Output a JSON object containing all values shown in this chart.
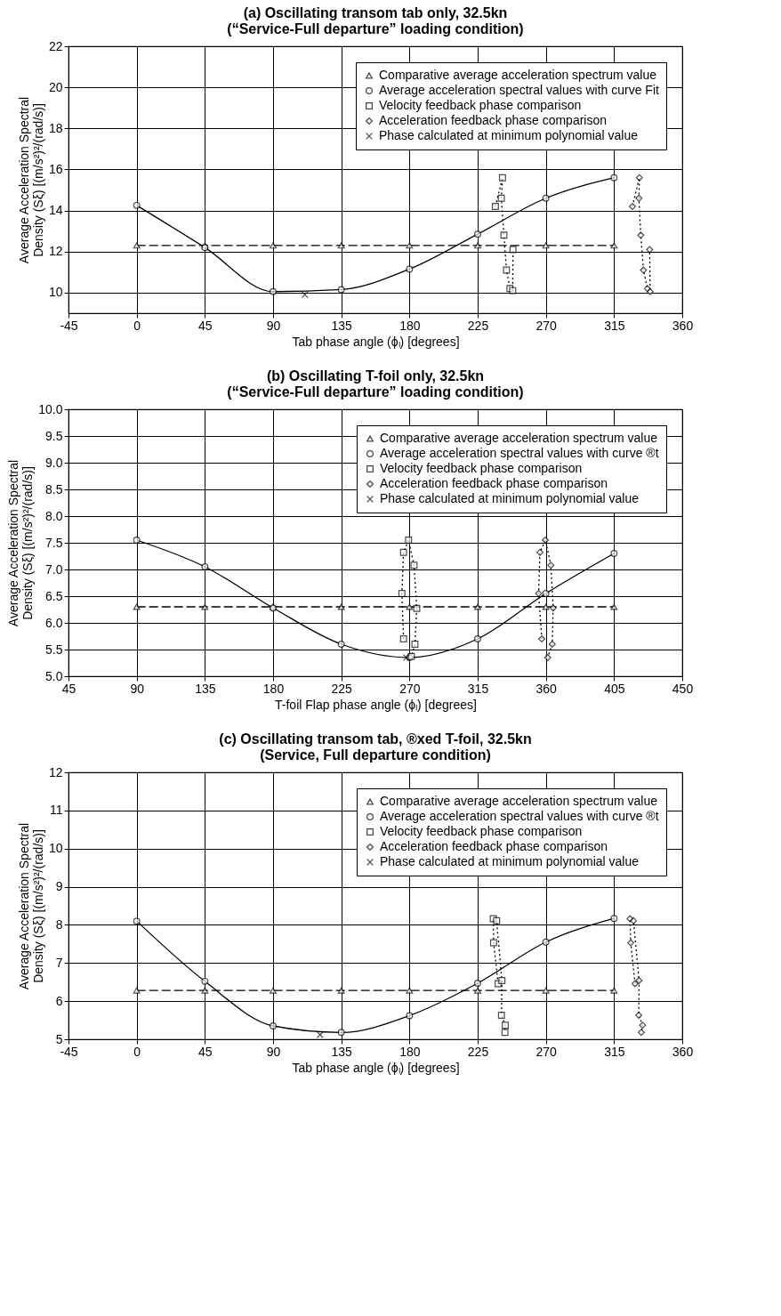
{
  "chart_data": [
    {
      "type": "line",
      "title": "(a) Oscillating transom tab only, 32.5kn\n(“Service-Full departure” loading condition)",
      "xlabel": "Tab phase angle (ϕₗ) [degrees]",
      "ylabel": "Average Acceleration Spectral\nDensity (Sξ) [(m/s²)²/(rad/s)]",
      "xlim": [
        -45,
        360
      ],
      "xticks": [
        -45,
        0,
        45,
        90,
        135,
        180,
        225,
        270,
        315,
        360
      ],
      "ylim": [
        9,
        22
      ],
      "yticks": [
        10,
        12,
        14,
        16,
        18,
        20,
        22
      ],
      "grid": true,
      "legend": "top right",
      "series": [
        {
          "name": "Comparative average acceleration spectrum value",
          "color": "#000000",
          "type": "line",
          "marker": "triangle",
          "line_style": "dashed",
          "x": [
            0,
            45,
            90,
            135,
            180,
            225,
            270,
            315
          ],
          "values": [
            12.3,
            12.3,
            12.3,
            12.3,
            12.3,
            12.3,
            12.3,
            12.3
          ]
        },
        {
          "name": "Average acceleration spectral values with curve Fit",
          "color": "#000000",
          "type": "line",
          "marker": "circle",
          "line_style": "solid",
          "x": [
            0,
            45,
            90,
            135,
            180,
            225,
            270,
            315
          ],
          "values": [
            14.25,
            12.2,
            10.05,
            10.15,
            11.15,
            12.85,
            14.6,
            15.6
          ]
        },
        {
          "name": "Velocity feedback phase comparison",
          "color": "#000000",
          "type": "line",
          "marker": "square",
          "line_style": "dotted",
          "x": [
            236.7,
            241.4,
            240.6,
            242.3,
            244,
            246.3,
            248.1,
            248.3
          ],
          "values": [
            14.2,
            15.6,
            14.6,
            12.8,
            11.1,
            10.2,
            10.1,
            12.1
          ]
        },
        {
          "name": "Acceleration feedback phase comparison",
          "color": "#000000",
          "type": "line",
          "marker": "diamond",
          "line_style": "dotted",
          "x": [
            327.1,
            331.7,
            331.4,
            332.6,
            334.4,
            337,
            338.8,
            338.5
          ],
          "values": [
            14.2,
            15.6,
            14.6,
            12.8,
            11.1,
            10.2,
            10.05,
            12.1
          ]
        },
        {
          "name": "Phase calculated at minimum polynomial value",
          "color": "#000000",
          "type": "scatter",
          "marker": "cross",
          "x": [
            111
          ],
          "values": [
            9.9
          ]
        }
      ]
    },
    {
      "type": "line",
      "title": "(b) Oscillating T-foil only, 32.5kn\n(“Service-Full departure” loading condition)",
      "xlabel": "T-foil Flap phase angle (ϕₗ) [degrees]",
      "ylabel": "Average Acceleration Spectral\nDensity (Sξ) [(m/s²)²/(rad/s)]",
      "xlim": [
        45,
        450
      ],
      "xticks": [
        45,
        90,
        135,
        180,
        225,
        270,
        315,
        360,
        405,
        450
      ],
      "ylim": [
        5,
        10
      ],
      "yticks": [
        {
          "value": 5,
          "label": "5.0"
        },
        5.5,
        {
          "value": 6,
          "label": "6.0"
        },
        6.5,
        {
          "value": 7,
          "label": "7.0"
        },
        7.5,
        {
          "value": 8,
          "label": "8.0"
        },
        8.5,
        {
          "value": 9,
          "label": "9.0"
        },
        9.5,
        {
          "value": 10,
          "label": "10.0"
        }
      ],
      "grid": true,
      "legend": "top right",
      "series": [
        {
          "name": "Comparative average acceleration spectrum value",
          "color": "#000000",
          "type": "line",
          "marker": "triangle",
          "line_style": "dashed",
          "x": [
            90,
            135,
            180,
            225,
            270,
            315,
            360,
            405
          ],
          "values": [
            6.3,
            6.3,
            6.3,
            6.3,
            6.3,
            6.3,
            6.3,
            6.3
          ]
        },
        {
          "name": "Average acceleration spectral values with curve ®t",
          "color": "#000000",
          "type": "line",
          "marker": "circle",
          "line_style": "solid",
          "x": [
            90,
            135,
            180,
            225,
            270,
            315,
            360,
            405
          ],
          "values": [
            7.55,
            7.05,
            6.28,
            5.6,
            5.35,
            5.7,
            6.55,
            7.3
          ]
        },
        {
          "name": "Velocity feedback phase comparison",
          "color": "#000000",
          "type": "line",
          "marker": "square",
          "line_style": "dotted",
          "x": [
            266.1,
            265,
            266.1,
            269.4,
            273,
            274.8,
            273.6,
            271.2
          ],
          "values": [
            5.7,
            6.55,
            7.32,
            7.55,
            7.08,
            6.27,
            5.6,
            5.37
          ]
        },
        {
          "name": "Acceleration feedback phase comparison",
          "color": "#000000",
          "type": "line",
          "marker": "diamond",
          "line_style": "dotted",
          "x": [
            357.3,
            355.2,
            356.1,
            359.7,
            363.3,
            364.8,
            364.2,
            361.2
          ],
          "values": [
            5.7,
            6.55,
            7.32,
            7.55,
            7.08,
            6.28,
            5.6,
            5.35
          ]
        },
        {
          "name": "Phase calculated at minimum polynomial value",
          "color": "#000000",
          "type": "scatter",
          "marker": "cross",
          "x": [
            268
          ],
          "values": [
            5.35
          ]
        }
      ]
    },
    {
      "type": "line",
      "title": "(c) Oscillating transom tab, ®xed T-foil, 32.5kn\n(Service, Full departure condition)",
      "xlabel": "Tab phase angle (ϕₗ) [degrees]",
      "ylabel": "Average Acceleration Spectral\nDensity (Sξ) [(m/s²)²/(rad/s)]",
      "xlim": [
        -45,
        360
      ],
      "xticks": [
        -45,
        0,
        45,
        90,
        135,
        180,
        225,
        270,
        315,
        360
      ],
      "ylim": [
        5,
        12
      ],
      "yticks": [
        5,
        6,
        7,
        8,
        9,
        10,
        11,
        12
      ],
      "grid": true,
      "legend": "top right",
      "series": [
        {
          "name": "Comparative average acceleration spectrum value",
          "color": "#000000",
          "type": "line",
          "marker": "triangle",
          "line_style": "dashed",
          "x": [
            0,
            45,
            90,
            135,
            180,
            225,
            270,
            315
          ],
          "values": [
            6.28,
            6.28,
            6.28,
            6.28,
            6.28,
            6.28,
            6.28,
            6.28
          ]
        },
        {
          "name": "Average acceleration spectral values with curve ®t",
          "color": "#000000",
          "type": "line",
          "marker": "circle",
          "line_style": "solid",
          "x": [
            0,
            45,
            90,
            135,
            180,
            225,
            270,
            315
          ],
          "values": [
            8.1,
            6.52,
            5.35,
            5.18,
            5.62,
            6.47,
            7.55,
            8.17
          ]
        },
        {
          "name": "Velocity feedback phase comparison",
          "color": "#000000",
          "type": "line",
          "marker": "square",
          "line_style": "dotted",
          "x": [
            238.5,
            235.5,
            235.3,
            237.5,
            241,
            240.7,
            243.2,
            243
          ],
          "values": [
            6.46,
            7.53,
            8.16,
            8.11,
            6.54,
            5.63,
            5.37,
            5.18
          ]
        },
        {
          "name": "Acceleration feedback phase comparison",
          "color": "#000000",
          "type": "line",
          "marker": "diamond",
          "line_style": "dotted",
          "x": [
            328.8,
            326,
            325.5,
            327.8,
            331.5,
            331.3,
            333.8,
            333
          ],
          "values": [
            6.46,
            7.53,
            8.16,
            8.11,
            6.54,
            5.63,
            5.37,
            5.18
          ]
        },
        {
          "name": "Phase calculated at minimum polynomial value",
          "color": "#000000",
          "type": "scatter",
          "marker": "cross",
          "x": [
            121
          ],
          "values": [
            5.12
          ]
        }
      ]
    }
  ]
}
